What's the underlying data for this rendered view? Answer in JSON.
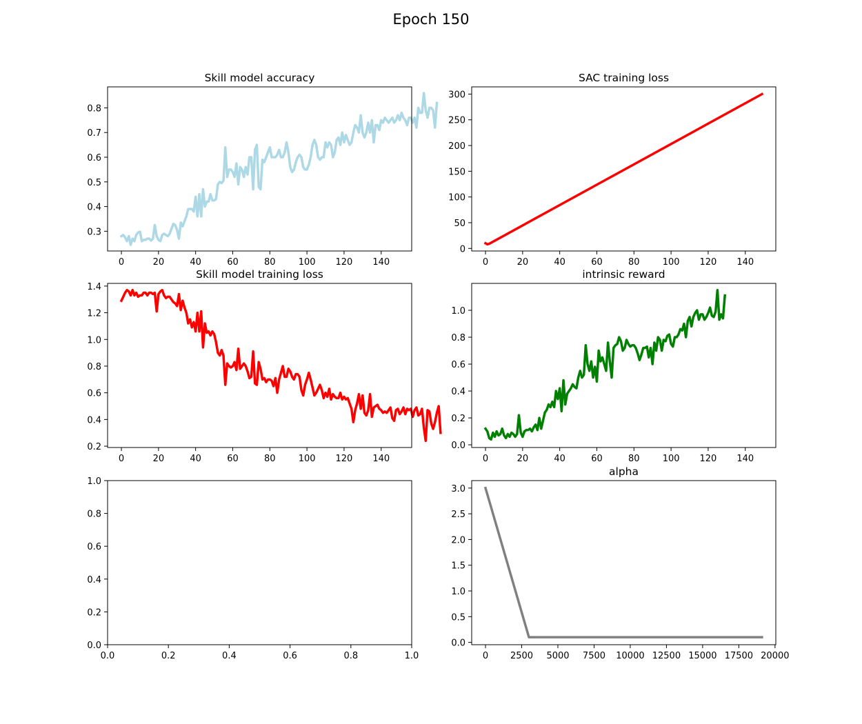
{
  "figure": {
    "suptitle": "Epoch 150"
  },
  "chart_data": [
    {
      "type": "line",
      "title": "Skill model accuracy",
      "xlabel": "",
      "ylabel": "",
      "xlim": [
        -7.45,
        156.45
      ],
      "ylim": [
        0.22,
        0.885
      ],
      "xticks": [
        0,
        20,
        40,
        60,
        80,
        100,
        120,
        140
      ],
      "yticks": [
        0.3,
        0.4,
        0.5,
        0.6,
        0.7,
        0.8
      ],
      "grid": false,
      "series": [
        {
          "color": "#add8e6",
          "x_start": 0,
          "x_step": 1,
          "values": [
            0.28,
            0.285,
            0.275,
            0.26,
            0.28,
            0.245,
            0.27,
            0.26,
            0.285,
            0.295,
            0.298,
            0.26,
            0.265,
            0.265,
            0.27,
            0.27,
            0.262,
            0.27,
            0.325,
            0.28,
            0.265,
            0.26,
            0.285,
            0.29,
            0.285,
            0.28,
            0.29,
            0.31,
            0.33,
            0.325,
            0.305,
            0.27,
            0.335,
            0.32,
            0.34,
            0.36,
            0.39,
            0.39,
            0.39,
            0.38,
            0.44,
            0.36,
            0.45,
            0.36,
            0.47,
            0.4,
            0.42,
            0.42,
            0.45,
            0.425,
            0.425,
            0.43,
            0.49,
            0.5,
            0.495,
            0.505,
            0.64,
            0.52,
            0.55,
            0.55,
            0.54,
            0.52,
            0.575,
            0.49,
            0.56,
            0.55,
            0.52,
            0.56,
            0.53,
            0.6,
            0.6,
            0.47,
            0.63,
            0.65,
            0.48,
            0.47,
            0.59,
            0.58,
            0.6,
            0.62,
            0.64,
            0.6,
            0.6,
            0.6,
            0.61,
            0.63,
            0.6,
            0.6,
            0.62,
            0.66,
            0.62,
            0.56,
            0.54,
            0.55,
            0.58,
            0.6,
            0.61,
            0.6,
            0.56,
            0.55,
            0.55,
            0.57,
            0.6,
            0.65,
            0.67,
            0.65,
            0.6,
            0.59,
            0.6,
            0.6,
            0.66,
            0.64,
            0.66,
            0.65,
            0.6,
            0.62,
            0.67,
            0.68,
            0.65,
            0.7,
            0.66,
            0.69,
            0.67,
            0.65,
            0.66,
            0.7,
            0.73,
            0.72,
            0.7,
            0.77,
            0.7,
            0.68,
            0.7,
            0.74,
            0.7,
            0.75,
            0.66,
            0.73,
            0.73,
            0.71,
            0.75,
            0.74,
            0.76,
            0.75,
            0.74,
            0.75,
            0.76,
            0.74,
            0.75,
            0.77,
            0.75,
            0.78,
            0.76,
            0.75,
            0.73,
            0.76,
            0.76,
            0.74,
            0.76,
            0.72,
            0.8,
            0.78,
            0.78,
            0.86,
            0.79,
            0.76,
            0.8,
            0.8,
            0.79,
            0.72,
            0.82
          ]
        }
      ]
    },
    {
      "type": "line",
      "title": "SAC training loss",
      "xlabel": "",
      "ylabel": "",
      "xlim": [
        -7.45,
        156.45
      ],
      "ylim": [
        -5,
        314
      ],
      "xticks": [
        0,
        20,
        40,
        60,
        80,
        100,
        120,
        140
      ],
      "yticks": [
        0,
        50,
        100,
        150,
        200,
        250,
        300
      ],
      "grid": false,
      "series": [
        {
          "color": "#ff0000",
          "points": [
            [
              0,
              10
            ],
            [
              1,
              8
            ],
            [
              2,
              9
            ],
            [
              3,
              11
            ],
            [
              149,
              300
            ]
          ]
        }
      ]
    },
    {
      "type": "line",
      "title": "Skill model training loss",
      "xlabel": "",
      "ylabel": "",
      "xlim": [
        -7.45,
        156.45
      ],
      "ylim": [
        0.19,
        1.42
      ],
      "xticks": [
        0,
        20,
        40,
        60,
        80,
        100,
        120,
        140
      ],
      "yticks": [
        0.2,
        0.4,
        0.6,
        0.8,
        1.0,
        1.2,
        1.4
      ],
      "grid": false,
      "series": [
        {
          "color": "#ff0000",
          "x_start": 0,
          "x_step": 1,
          "values": [
            1.29,
            1.32,
            1.35,
            1.37,
            1.36,
            1.33,
            1.37,
            1.33,
            1.35,
            1.32,
            1.33,
            1.33,
            1.35,
            1.35,
            1.33,
            1.35,
            1.35,
            1.34,
            1.35,
            1.21,
            1.34,
            1.36,
            1.37,
            1.33,
            1.31,
            1.32,
            1.32,
            1.3,
            1.28,
            1.27,
            1.25,
            1.34,
            1.22,
            1.29,
            1.24,
            1.2,
            1.12,
            1.15,
            1.09,
            1.13,
            1.06,
            1.2,
            1.06,
            1.21,
            0.94,
            1.12,
            1.05,
            1.06,
            1.03,
            1.06,
            1.04,
            0.98,
            0.9,
            0.88,
            0.92,
            0.88,
            0.66,
            0.82,
            0.8,
            0.79,
            0.8,
            0.83,
            0.77,
            0.93,
            0.78,
            0.8,
            0.82,
            0.8,
            0.76,
            0.71,
            0.72,
            0.91,
            0.67,
            0.66,
            0.83,
            0.78,
            0.7,
            0.71,
            0.68,
            0.7,
            0.7,
            0.69,
            0.65,
            0.71,
            0.6,
            0.7,
            0.75,
            0.8,
            0.72,
            0.72,
            0.78,
            0.76,
            0.72,
            0.7,
            0.74,
            0.74,
            0.72,
            0.62,
            0.58,
            0.66,
            0.7,
            0.75,
            0.7,
            0.64,
            0.58,
            0.6,
            0.63,
            0.66,
            0.62,
            0.56,
            0.6,
            0.57,
            0.63,
            0.55,
            0.59,
            0.57,
            0.56,
            0.56,
            0.6,
            0.55,
            0.57,
            0.55,
            0.56,
            0.52,
            0.48,
            0.38,
            0.47,
            0.52,
            0.59,
            0.48,
            0.58,
            0.45,
            0.43,
            0.47,
            0.59,
            0.42,
            0.49,
            0.5,
            0.51,
            0.48,
            0.47,
            0.45,
            0.46,
            0.45,
            0.47,
            0.49,
            0.41,
            0.39,
            0.47,
            0.48,
            0.44,
            0.46,
            0.49,
            0.44,
            0.48,
            0.47,
            0.48,
            0.42,
            0.47,
            0.49,
            0.43,
            0.44,
            0.48,
            0.34,
            0.24,
            0.47,
            0.46,
            0.37,
            0.33,
            0.38,
            0.45,
            0.5,
            0.3
          ]
        }
      ]
    },
    {
      "type": "line",
      "title": "intrinsic reward",
      "xlabel": "",
      "ylabel": "",
      "xlim": [
        -7.45,
        156.45
      ],
      "ylim": [
        -0.02,
        1.2
      ],
      "xticks": [
        0,
        20,
        40,
        60,
        80,
        100,
        120,
        140
      ],
      "yticks": [
        0.0,
        0.2,
        0.4,
        0.6,
        0.8,
        1.0
      ],
      "grid": false,
      "series": [
        {
          "color": "#008000",
          "x_start": 0,
          "x_step": 1,
          "values": [
            0.12,
            0.1,
            0.05,
            0.04,
            0.09,
            0.06,
            0.1,
            0.07,
            0.08,
            0.12,
            0.07,
            0.05,
            0.08,
            0.06,
            0.09,
            0.08,
            0.06,
            0.08,
            0.22,
            0.09,
            0.06,
            0.1,
            0.11,
            0.11,
            0.12,
            0.1,
            0.13,
            0.15,
            0.11,
            0.2,
            0.12,
            0.18,
            0.24,
            0.26,
            0.3,
            0.28,
            0.32,
            0.28,
            0.4,
            0.34,
            0.42,
            0.25,
            0.48,
            0.3,
            0.38,
            0.4,
            0.42,
            0.45,
            0.43,
            0.42,
            0.5,
            0.55,
            0.5,
            0.52,
            0.74,
            0.6,
            0.55,
            0.62,
            0.5,
            0.58,
            0.47,
            0.7,
            0.62,
            0.65,
            0.6,
            0.55,
            0.76,
            0.62,
            0.5,
            0.72,
            0.74,
            0.75,
            0.8,
            0.77,
            0.7,
            0.72,
            0.78,
            0.75,
            0.73,
            0.74,
            0.74,
            0.72,
            0.68,
            0.63,
            0.67,
            0.72,
            0.72,
            0.73,
            0.65,
            0.72,
            0.6,
            0.76,
            0.7,
            0.8,
            0.78,
            0.7,
            0.78,
            0.77,
            0.81,
            0.82,
            0.75,
            0.73,
            0.8,
            0.8,
            0.82,
            0.86,
            0.85,
            0.9,
            0.8,
            0.92,
            0.95,
            0.88,
            0.95,
            0.98,
            1.0,
            0.93,
            0.97,
            0.97,
            0.93,
            0.95,
            0.98,
            1.02,
            0.96,
            0.95,
            0.99,
            1.15,
            0.93,
            0.97,
            0.94,
            1.11
          ]
        }
      ]
    },
    {
      "type": "line",
      "title": "",
      "xlabel": "",
      "ylabel": "",
      "xlim": [
        0,
        1
      ],
      "ylim": [
        0,
        1
      ],
      "xticks": [
        0.0,
        0.2,
        0.4,
        0.6,
        0.8,
        1.0
      ],
      "yticks": [
        0.0,
        0.2,
        0.4,
        0.6,
        0.8,
        1.0
      ],
      "grid": false,
      "series": []
    },
    {
      "type": "line",
      "title": "alpha",
      "xlabel": "",
      "ylabel": "",
      "xlim": [
        -955,
        20055
      ],
      "ylim": [
        -0.045,
        3.145
      ],
      "xticks": [
        0,
        2500,
        5000,
        7500,
        10000,
        12500,
        15000,
        17500,
        20000
      ],
      "yticks": [
        0.0,
        0.5,
        1.0,
        1.5,
        2.0,
        2.5,
        3.0
      ],
      "grid": false,
      "series": [
        {
          "color": "#808080",
          "points": [
            [
              0,
              3.0
            ],
            [
              3000,
              0.1
            ],
            [
              19100,
              0.1
            ]
          ]
        }
      ]
    }
  ]
}
